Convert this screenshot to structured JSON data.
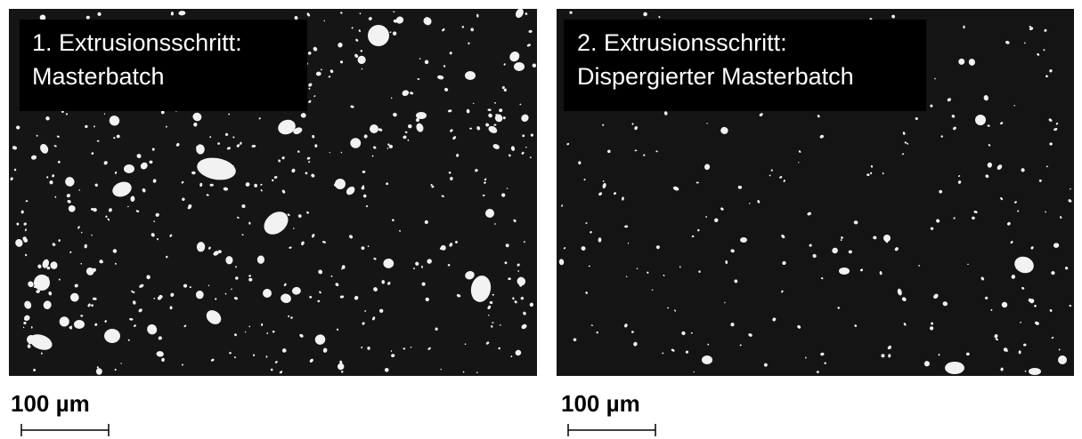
{
  "panels": [
    {
      "caption": [
        "1. Extrusionsschritt:",
        "Masterbatch"
      ],
      "scale_label": "100 µm"
    },
    {
      "caption": [
        "2. Extrusionsschritt:",
        "Dispergierter Masterbatch"
      ],
      "scale_label": "100 µm"
    }
  ]
}
